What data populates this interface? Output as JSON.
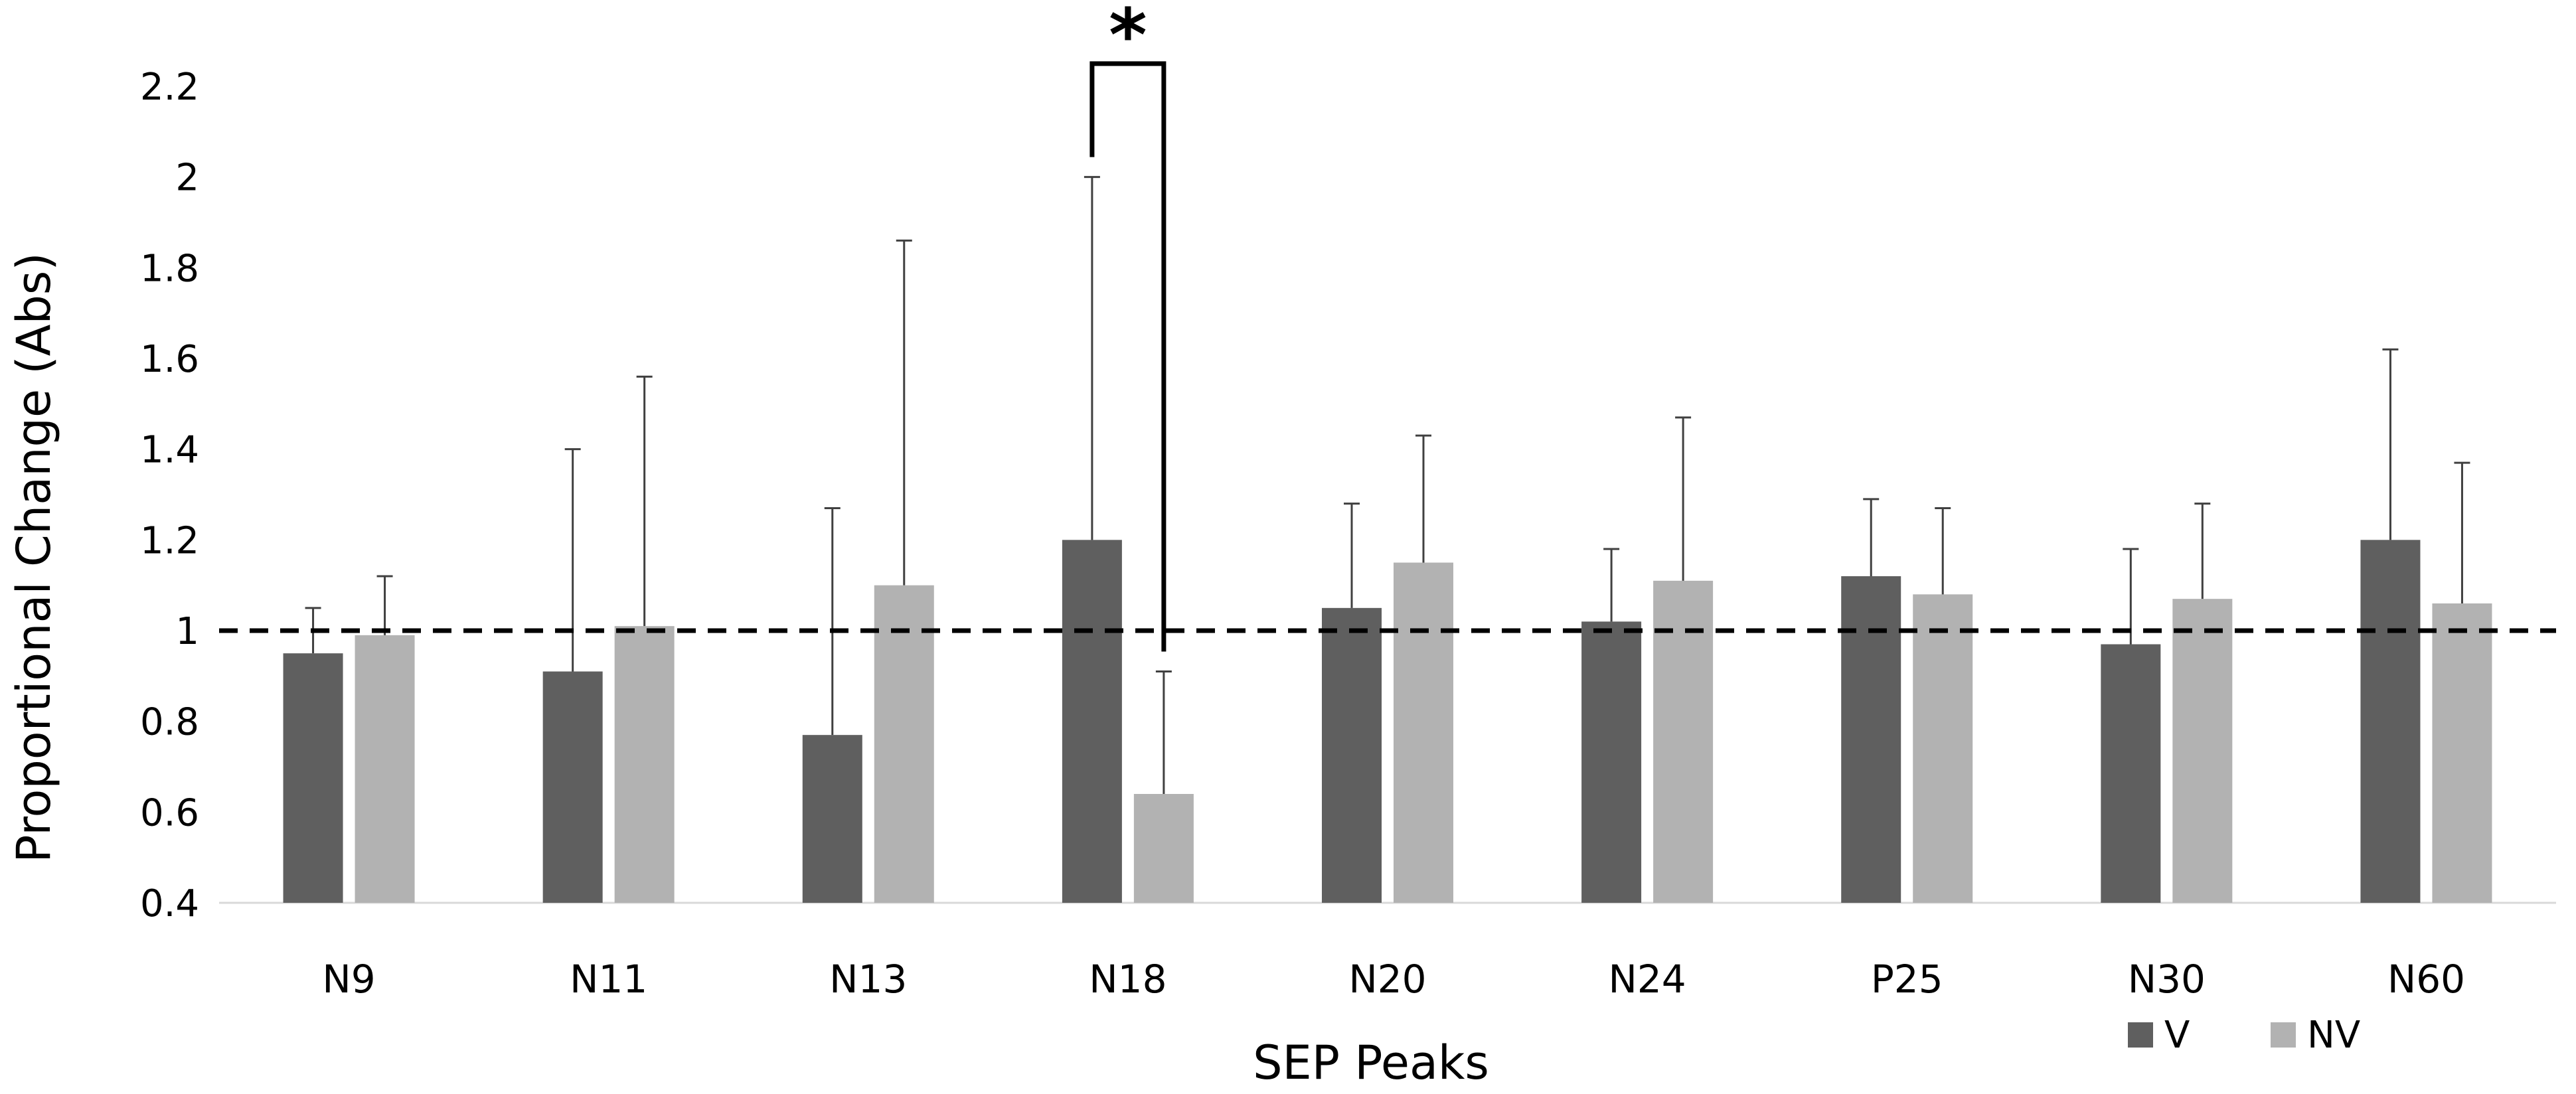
{
  "chart_data": {
    "type": "bar",
    "title": "",
    "xlabel": "SEP Peaks",
    "ylabel": "Proportional Change (Abs)",
    "ylim": [
      0.4,
      2.2
    ],
    "yticks": [
      "0.4",
      "0.6",
      "0.8",
      "1",
      "1.2",
      "1.4",
      "1.6",
      "1.8",
      "2",
      "2.2"
    ],
    "grid": false,
    "legend_position": "bottom-right",
    "reference_line": {
      "y": 1.0,
      "style": "dashed"
    },
    "categories": [
      "N9",
      "N11",
      "N13",
      "N18",
      "N20",
      "N24",
      "P25",
      "N30",
      "N60"
    ],
    "series": [
      {
        "name": "V",
        "color": "#5f5f5f",
        "values": [
          0.95,
          0.91,
          0.77,
          1.2,
          1.05,
          1.02,
          1.12,
          0.97,
          1.2
        ],
        "error_upper": [
          1.05,
          1.4,
          1.27,
          2.0,
          1.28,
          1.18,
          1.29,
          1.18,
          1.62
        ]
      },
      {
        "name": "NV",
        "color": "#b2b2b2",
        "values": [
          0.99,
          1.01,
          1.1,
          0.64,
          1.15,
          1.11,
          1.08,
          1.07,
          1.06
        ],
        "error_upper": [
          1.12,
          1.56,
          1.86,
          0.91,
          1.43,
          1.47,
          1.27,
          1.28,
          1.37
        ]
      }
    ],
    "annotations": [
      {
        "type": "significance",
        "category": "N18",
        "label": "*",
        "bracket_top": 2.25
      }
    ]
  }
}
